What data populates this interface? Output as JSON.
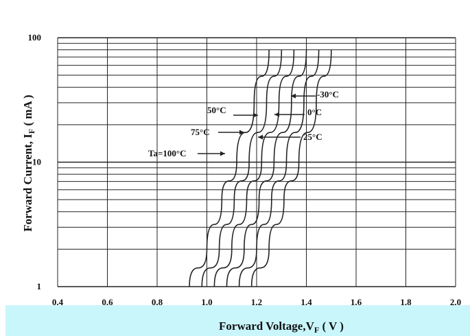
{
  "chart_data": {
    "type": "line",
    "xlabel": "Forward Voltage,V",
    "xlabel_sub": "F",
    "xlabel_unit": " ( V )",
    "ylabel": "Forward Current, I",
    "ylabel_sub": "F",
    "ylabel_unit": " ( mA )",
    "xlim": [
      0.4,
      2.0
    ],
    "ylim": [
      1,
      100
    ],
    "yscale": "log",
    "grid": true,
    "x_ticks": [
      "0.4",
      "0.6",
      "0.8",
      "1.0",
      "1.2",
      "1.4",
      "1.6",
      "1.8",
      "2.0"
    ],
    "y_ticks": [
      {
        "value": 1,
        "label": "1"
      },
      {
        "value": 10,
        "label": "10"
      },
      {
        "value": 100,
        "label": "100"
      }
    ],
    "series": [
      {
        "name": "Ta=100°C",
        "x": [
          0.93,
          1.0,
          1.06,
          1.12,
          1.19,
          1.25
        ],
        "y": [
          1,
          2,
          5,
          10,
          30,
          80
        ]
      },
      {
        "name": "75°C",
        "x": [
          0.98,
          1.05,
          1.11,
          1.17,
          1.24,
          1.3
        ],
        "y": [
          1,
          2,
          5,
          10,
          30,
          80
        ]
      },
      {
        "name": "50°C",
        "x": [
          1.03,
          1.1,
          1.16,
          1.22,
          1.29,
          1.35
        ],
        "y": [
          1,
          2,
          5,
          10,
          30,
          80
        ]
      },
      {
        "name": "25°C",
        "x": [
          1.08,
          1.15,
          1.21,
          1.27,
          1.34,
          1.4
        ],
        "y": [
          1,
          2,
          5,
          10,
          30,
          80
        ]
      },
      {
        "name": "0°C",
        "x": [
          1.13,
          1.2,
          1.26,
          1.32,
          1.39,
          1.45
        ],
        "y": [
          1,
          2,
          5,
          10,
          30,
          80
        ]
      },
      {
        "name": "-30°C",
        "x": [
          1.18,
          1.25,
          1.31,
          1.37,
          1.44,
          1.5
        ],
        "y": [
          1,
          2,
          5,
          10,
          30,
          80
        ]
      }
    ],
    "labels": [
      {
        "text": "Ta=100°C",
        "series": 0
      },
      {
        "text": "75°C",
        "series": 1
      },
      {
        "text": "50°C",
        "series": 2
      },
      {
        "text": "25°C",
        "series": 3
      },
      {
        "text": "0°C",
        "series": 4
      },
      {
        "text": "-30°C",
        "series": 5
      }
    ]
  },
  "colors": {
    "line": "#222222",
    "band": "#c9f6fb"
  }
}
